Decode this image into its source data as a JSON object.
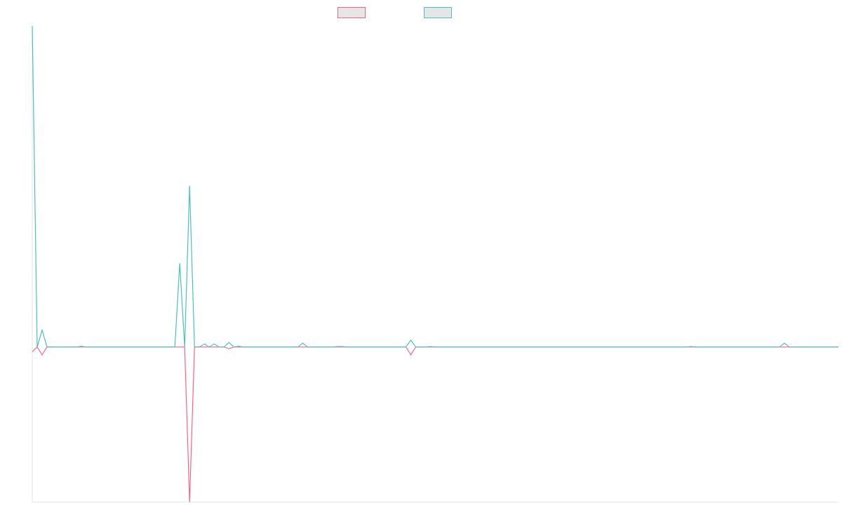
{
  "chart_data": {
    "type": "line",
    "ylim": [
      -100,
      207
    ],
    "series": [
      {
        "color": "#ff6384",
        "values": [
          -3,
          0,
          -5,
          0,
          0,
          0,
          0,
          0,
          0,
          0,
          0,
          0,
          0,
          0,
          0,
          0,
          0,
          0,
          0,
          0,
          0,
          0,
          0,
          0,
          0,
          0,
          0,
          0,
          0,
          0,
          0,
          0,
          -100,
          0,
          0,
          0,
          0,
          0,
          0,
          0,
          -1,
          0,
          0,
          0,
          0,
          0,
          0,
          0,
          0,
          0,
          0,
          0,
          0,
          0,
          0,
          0,
          0,
          0,
          0,
          0,
          0,
          0,
          0,
          0,
          0,
          0,
          0,
          0,
          0,
          0,
          0,
          0,
          0,
          0,
          0,
          0,
          0,
          -5,
          0,
          0,
          0,
          0,
          0,
          0,
          0,
          0,
          0,
          0,
          0,
          0,
          0,
          0,
          0,
          0,
          0,
          0,
          0,
          0,
          0,
          0,
          0,
          0,
          0,
          0,
          0,
          0,
          0,
          0,
          0,
          0,
          0,
          0,
          0,
          0,
          0,
          0,
          0,
          0,
          0,
          0,
          0,
          0,
          0,
          0,
          0,
          0,
          0,
          0,
          0,
          0,
          0,
          0,
          0,
          0,
          0,
          0,
          0,
          0,
          0,
          0,
          0,
          0,
          0,
          0,
          0,
          0,
          0,
          0,
          0,
          0,
          0,
          0,
          0,
          0,
          0,
          0,
          0,
          0,
          0,
          0,
          0,
          0,
          0,
          0,
          0
        ]
      },
      {
        "color": "#4bc0c0",
        "values": [
          207,
          0,
          11,
          0,
          0,
          0,
          0,
          0,
          0,
          0,
          0.5,
          0,
          0,
          0,
          0,
          0,
          0,
          0,
          0,
          0,
          0,
          0,
          0,
          0,
          0,
          0,
          0,
          0,
          0,
          0,
          54,
          0,
          104,
          0,
          0,
          2,
          0,
          2,
          0,
          0,
          3,
          0,
          0.5,
          0,
          0,
          0,
          0,
          0,
          0,
          0,
          0,
          0,
          0,
          0,
          0,
          2.5,
          0,
          0,
          0,
          0,
          0,
          0,
          0.3,
          0.3,
          0,
          0,
          0,
          0,
          0,
          0,
          0,
          0,
          0,
          0,
          0,
          0,
          0,
          4.5,
          0,
          0,
          0,
          0.3,
          0,
          0,
          0,
          0,
          0,
          0,
          0,
          0,
          0,
          0,
          0,
          0,
          0,
          0,
          0,
          0,
          0,
          0,
          0,
          0,
          0,
          0,
          0,
          0,
          0,
          0,
          0,
          0,
          0,
          0,
          0,
          0,
          0,
          0,
          0,
          0,
          0,
          0,
          0,
          0,
          0,
          0,
          0,
          0,
          0,
          0,
          0,
          0,
          0,
          0,
          0,
          0,
          0.3,
          0,
          0,
          0,
          0,
          0,
          0,
          0,
          0,
          0,
          0,
          0,
          0,
          0,
          0,
          0,
          0,
          0,
          0,
          2.5,
          0,
          0,
          0,
          0,
          0,
          0,
          0,
          0,
          0,
          0,
          0
        ]
      }
    ]
  }
}
